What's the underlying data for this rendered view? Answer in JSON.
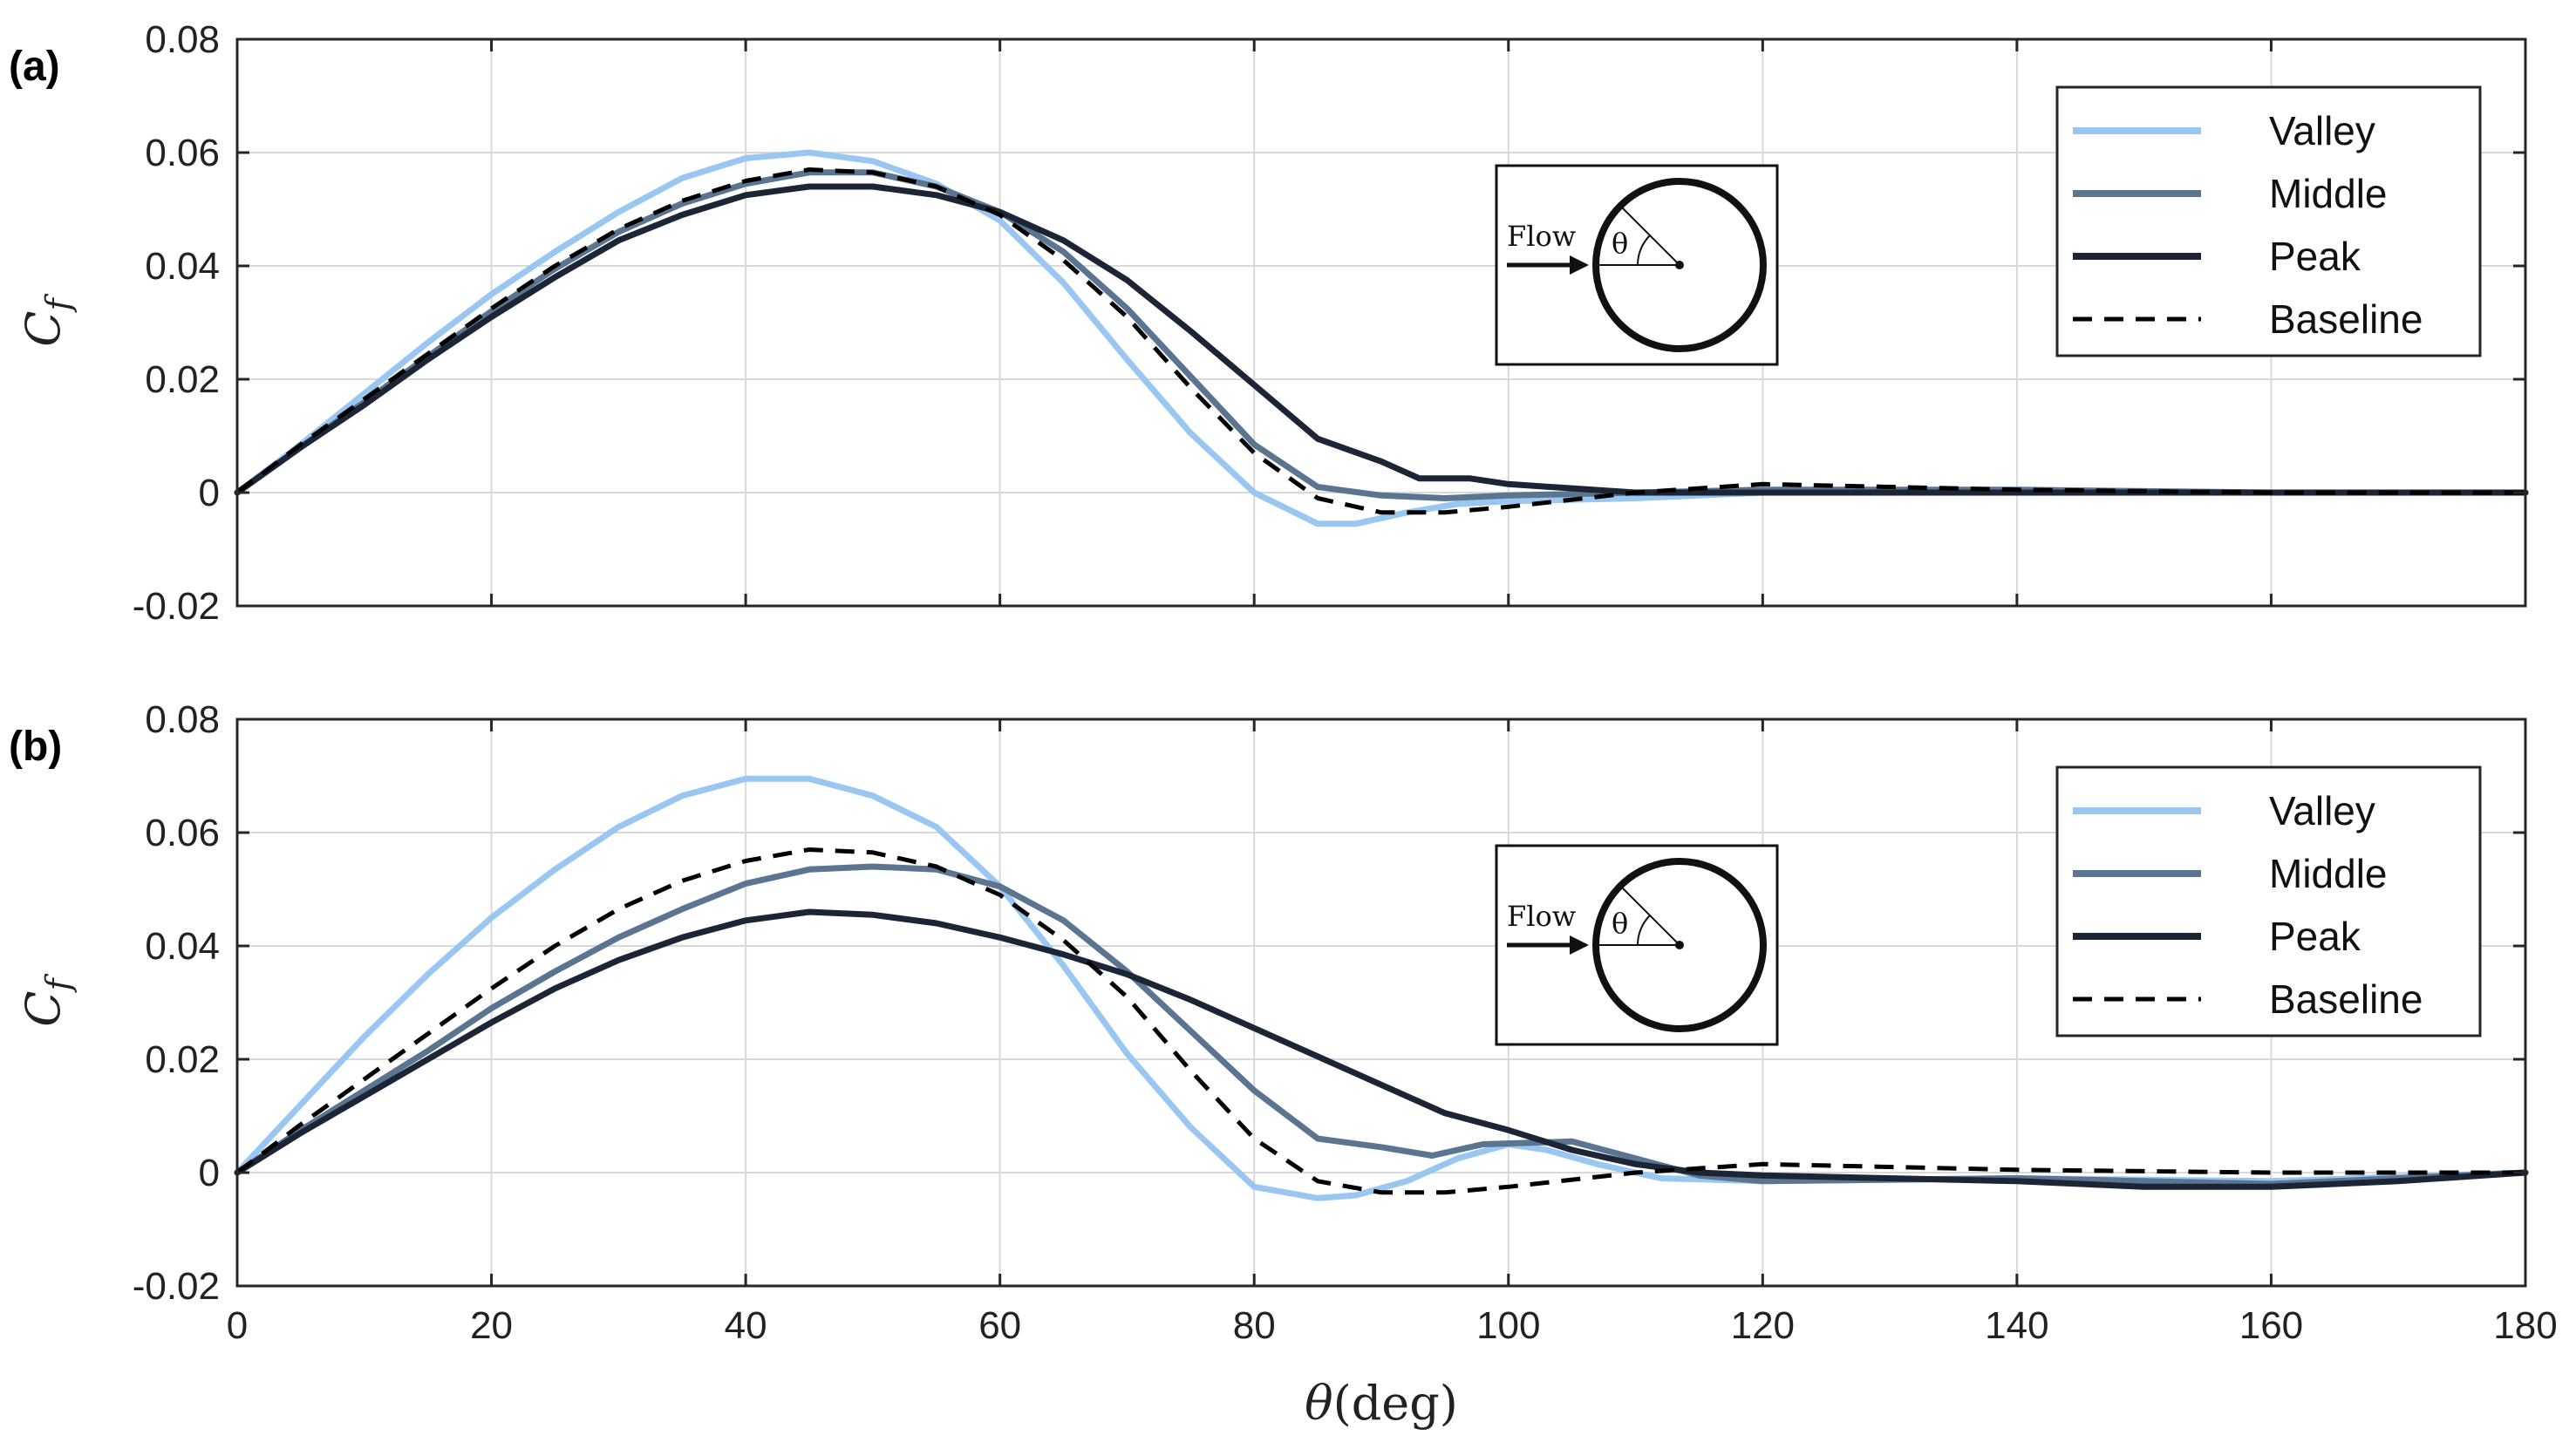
{
  "chart_data": [
    {
      "type": "line",
      "panel_label": "(a)",
      "xlabel": "θ(deg)",
      "ylabel": "C_f",
      "xlim": [
        0,
        180
      ],
      "ylim": [
        -0.02,
        0.08
      ],
      "x_ticks": [
        0,
        20,
        40,
        60,
        80,
        100,
        120,
        140,
        160,
        180
      ],
      "y_ticks": [
        -0.02,
        0,
        0.02,
        0.04,
        0.06,
        0.08
      ],
      "y_tick_labels": [
        "-0.02",
        "0",
        "0.02",
        "0.04",
        "0.06",
        "0.08"
      ],
      "grid": true,
      "legend_position": "top-right",
      "inset": {
        "flow_label": "Flow",
        "angle_label": "θ"
      },
      "series": [
        {
          "name": "Valley",
          "color": "#99c7f2",
          "dash": "solid",
          "points": [
            [
              0,
              0
            ],
            [
              5,
              0.0085
            ],
            [
              10,
              0.0175
            ],
            [
              15,
              0.0265
            ],
            [
              20,
              0.035
            ],
            [
              25,
              0.0425
            ],
            [
              30,
              0.0495
            ],
            [
              35,
              0.0555
            ],
            [
              40,
              0.059
            ],
            [
              45,
              0.06
            ],
            [
              50,
              0.0585
            ],
            [
              55,
              0.0545
            ],
            [
              60,
              0.048
            ],
            [
              65,
              0.037
            ],
            [
              70,
              0.0235
            ],
            [
              75,
              0.0105
            ],
            [
              80,
              0.0
            ],
            [
              85,
              -0.0055
            ],
            [
              88,
              -0.0055
            ],
            [
              92,
              -0.0035
            ],
            [
              96,
              -0.002
            ],
            [
              100,
              -0.0015
            ],
            [
              110,
              -0.001
            ],
            [
              120,
              0.0
            ],
            [
              140,
              0.0
            ],
            [
              160,
              0.0
            ],
            [
              180,
              0.0
            ]
          ]
        },
        {
          "name": "Middle",
          "color": "#5b7591",
          "dash": "solid",
          "points": [
            [
              0,
              0
            ],
            [
              5,
              0.008
            ],
            [
              10,
              0.016
            ],
            [
              15,
              0.024
            ],
            [
              20,
              0.032
            ],
            [
              25,
              0.0395
            ],
            [
              30,
              0.046
            ],
            [
              35,
              0.051
            ],
            [
              40,
              0.0545
            ],
            [
              45,
              0.0565
            ],
            [
              50,
              0.0565
            ],
            [
              55,
              0.054
            ],
            [
              60,
              0.0495
            ],
            [
              65,
              0.0425
            ],
            [
              70,
              0.0325
            ],
            [
              75,
              0.0205
            ],
            [
              80,
              0.0085
            ],
            [
              85,
              0.001
            ],
            [
              90,
              -0.0005
            ],
            [
              95,
              -0.001
            ],
            [
              100,
              -0.0005
            ],
            [
              110,
              0.0
            ],
            [
              120,
              0.0005
            ],
            [
              140,
              0.0005
            ],
            [
              160,
              0.0
            ],
            [
              180,
              0.0
            ]
          ]
        },
        {
          "name": "Peak",
          "color": "#1c2535",
          "dash": "solid",
          "points": [
            [
              0,
              0
            ],
            [
              5,
              0.008
            ],
            [
              10,
              0.0155
            ],
            [
              15,
              0.0235
            ],
            [
              20,
              0.031
            ],
            [
              25,
              0.038
            ],
            [
              30,
              0.0445
            ],
            [
              35,
              0.049
            ],
            [
              40,
              0.0525
            ],
            [
              45,
              0.054
            ],
            [
              50,
              0.054
            ],
            [
              55,
              0.0525
            ],
            [
              60,
              0.0495
            ],
            [
              65,
              0.0445
            ],
            [
              70,
              0.0375
            ],
            [
              75,
              0.0285
            ],
            [
              80,
              0.019
            ],
            [
              85,
              0.0095
            ],
            [
              90,
              0.0055
            ],
            [
              93,
              0.0025
            ],
            [
              97,
              0.0025
            ],
            [
              100,
              0.0015
            ],
            [
              110,
              0.0
            ],
            [
              120,
              0.0
            ],
            [
              140,
              0.0
            ],
            [
              160,
              0.0
            ],
            [
              180,
              0.0
            ]
          ]
        },
        {
          "name": "Baseline",
          "color": "#000000",
          "dash": "dashed",
          "points": [
            [
              0,
              0
            ],
            [
              5,
              0.0085
            ],
            [
              10,
              0.0165
            ],
            [
              15,
              0.0245
            ],
            [
              20,
              0.0325
            ],
            [
              25,
              0.04
            ],
            [
              30,
              0.0465
            ],
            [
              35,
              0.0515
            ],
            [
              40,
              0.055
            ],
            [
              45,
              0.057
            ],
            [
              50,
              0.0565
            ],
            [
              55,
              0.054
            ],
            [
              60,
              0.049
            ],
            [
              65,
              0.041
            ],
            [
              70,
              0.031
            ],
            [
              75,
              0.0185
            ],
            [
              80,
              0.007
            ],
            [
              85,
              -0.001
            ],
            [
              90,
              -0.0035
            ],
            [
              95,
              -0.0035
            ],
            [
              100,
              -0.0025
            ],
            [
              110,
              0.0
            ],
            [
              120,
              0.0015
            ],
            [
              130,
              0.001
            ],
            [
              140,
              0.0005
            ],
            [
              160,
              0.0
            ],
            [
              180,
              0.0
            ]
          ]
        }
      ]
    },
    {
      "type": "line",
      "panel_label": "(b)",
      "xlabel": "θ(deg)",
      "ylabel": "C_f",
      "xlim": [
        0,
        180
      ],
      "ylim": [
        -0.02,
        0.08
      ],
      "x_ticks": [
        0,
        20,
        40,
        60,
        80,
        100,
        120,
        140,
        160,
        180
      ],
      "y_ticks": [
        -0.02,
        0,
        0.02,
        0.04,
        0.06,
        0.08
      ],
      "y_tick_labels": [
        "-0.02",
        "0",
        "0.02",
        "0.04",
        "0.06",
        "0.08"
      ],
      "grid": true,
      "legend_position": "top-right",
      "inset": {
        "flow_label": "Flow",
        "angle_label": "θ"
      },
      "series": [
        {
          "name": "Valley",
          "color": "#99c7f2",
          "dash": "solid",
          "points": [
            [
              0,
              0
            ],
            [
              5,
              0.012
            ],
            [
              10,
              0.024
            ],
            [
              15,
              0.035
            ],
            [
              20,
              0.045
            ],
            [
              25,
              0.0535
            ],
            [
              30,
              0.061
            ],
            [
              35,
              0.0665
            ],
            [
              40,
              0.0695
            ],
            [
              45,
              0.0695
            ],
            [
              50,
              0.0665
            ],
            [
              55,
              0.061
            ],
            [
              60,
              0.0505
            ],
            [
              65,
              0.0365
            ],
            [
              70,
              0.021
            ],
            [
              75,
              0.008
            ],
            [
              80,
              -0.0025
            ],
            [
              85,
              -0.0045
            ],
            [
              88,
              -0.004
            ],
            [
              92,
              -0.0015
            ],
            [
              96,
              0.0025
            ],
            [
              100,
              0.005
            ],
            [
              103,
              0.004
            ],
            [
              107,
              0.0015
            ],
            [
              112,
              -0.001
            ],
            [
              120,
              -0.0015
            ],
            [
              140,
              -0.001
            ],
            [
              160,
              -0.0015
            ],
            [
              180,
              0.0
            ]
          ]
        },
        {
          "name": "Middle",
          "color": "#5b7591",
          "dash": "solid",
          "points": [
            [
              0,
              0
            ],
            [
              5,
              0.0075
            ],
            [
              10,
              0.0145
            ],
            [
              15,
              0.0215
            ],
            [
              20,
              0.029
            ],
            [
              25,
              0.0355
            ],
            [
              30,
              0.0415
            ],
            [
              35,
              0.0465
            ],
            [
              40,
              0.051
            ],
            [
              45,
              0.0535
            ],
            [
              50,
              0.054
            ],
            [
              55,
              0.0535
            ],
            [
              60,
              0.0505
            ],
            [
              65,
              0.0445
            ],
            [
              70,
              0.0355
            ],
            [
              75,
              0.025
            ],
            [
              80,
              0.0145
            ],
            [
              85,
              0.006
            ],
            [
              90,
              0.0045
            ],
            [
              94,
              0.003
            ],
            [
              98,
              0.005
            ],
            [
              105,
              0.0055
            ],
            [
              110,
              0.0025
            ],
            [
              115,
              -0.0005
            ],
            [
              120,
              -0.0015
            ],
            [
              140,
              -0.001
            ],
            [
              160,
              -0.002
            ],
            [
              180,
              0.0
            ]
          ]
        },
        {
          "name": "Peak",
          "color": "#1c2535",
          "dash": "solid",
          "points": [
            [
              0,
              0
            ],
            [
              5,
              0.007
            ],
            [
              10,
              0.0135
            ],
            [
              15,
              0.02
            ],
            [
              20,
              0.0265
            ],
            [
              25,
              0.0325
            ],
            [
              30,
              0.0375
            ],
            [
              35,
              0.0415
            ],
            [
              40,
              0.0445
            ],
            [
              45,
              0.046
            ],
            [
              50,
              0.0455
            ],
            [
              55,
              0.044
            ],
            [
              60,
              0.0415
            ],
            [
              65,
              0.0385
            ],
            [
              70,
              0.035
            ],
            [
              75,
              0.0305
            ],
            [
              80,
              0.0255
            ],
            [
              85,
              0.0205
            ],
            [
              90,
              0.0155
            ],
            [
              95,
              0.0105
            ],
            [
              100,
              0.0075
            ],
            [
              105,
              0.004
            ],
            [
              110,
              0.0015
            ],
            [
              115,
              0.0
            ],
            [
              120,
              -0.0005
            ],
            [
              130,
              -0.001
            ],
            [
              140,
              -0.0015
            ],
            [
              150,
              -0.0025
            ],
            [
              160,
              -0.0025
            ],
            [
              170,
              -0.0015
            ],
            [
              180,
              0.0
            ]
          ]
        },
        {
          "name": "Baseline",
          "color": "#000000",
          "dash": "dashed",
          "points": [
            [
              0,
              0
            ],
            [
              5,
              0.0085
            ],
            [
              10,
              0.0165
            ],
            [
              15,
              0.0245
            ],
            [
              20,
              0.0325
            ],
            [
              25,
              0.04
            ],
            [
              30,
              0.0465
            ],
            [
              35,
              0.0515
            ],
            [
              40,
              0.055
            ],
            [
              45,
              0.057
            ],
            [
              50,
              0.0565
            ],
            [
              55,
              0.054
            ],
            [
              60,
              0.049
            ],
            [
              65,
              0.041
            ],
            [
              70,
              0.031
            ],
            [
              75,
              0.018
            ],
            [
              80,
              0.006
            ],
            [
              85,
              -0.0015
            ],
            [
              90,
              -0.0035
            ],
            [
              95,
              -0.0035
            ],
            [
              100,
              -0.0025
            ],
            [
              110,
              0.0
            ],
            [
              120,
              0.0015
            ],
            [
              130,
              0.001
            ],
            [
              140,
              0.0005
            ],
            [
              160,
              0.0
            ],
            [
              180,
              0.0
            ]
          ]
        }
      ]
    }
  ]
}
